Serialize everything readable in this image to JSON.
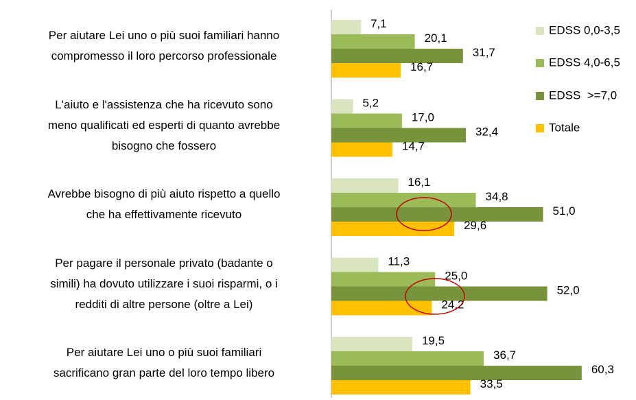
{
  "chart_data": {
    "type": "hbar",
    "categories": [
      "Per aiutare Lei uno o più suoi familiari hanno\ncompromesso il loro percorso professionale",
      "L'aiuto e l'assistenza che ha ricevuto sono\nmeno qualificati ed esperti di quanto avrebbe\nbisogno che fossero",
      "Avrebbe bisogno di più aiuto rispetto a quello\nche ha effettivamente ricevuto",
      "Per pagare il personale privato (badante o\nsimili) ha dovuto utilizzare i suoi risparmi, o i\nredditi di altre persone (oltre a Lei)",
      "Per aiutare Lei uno o più suoi familiari\nsacrificano gran parte del loro tempo libero"
    ],
    "series": [
      {
        "name": "EDSS 0,0-3,5",
        "color": "#d7e4bd",
        "values": [
          7.1,
          5.2,
          16.1,
          11.3,
          19.5
        ],
        "value_labels": [
          "7,1",
          "5,2",
          "16,1",
          "11,3",
          "19,5"
        ]
      },
      {
        "name": "EDSS 4,0-6,5",
        "color": "#9bbb59",
        "values": [
          20.1,
          17.0,
          34.8,
          25.0,
          36.7
        ],
        "value_labels": [
          "20,1",
          "17,0",
          "34,8",
          "25,0",
          "36,7"
        ]
      },
      {
        "name": "EDSS  >=7,0",
        "color": "#77933c",
        "values": [
          31.7,
          32.4,
          51.0,
          52.0,
          60.3
        ],
        "value_labels": [
          "31,7",
          "32,4",
          "51,0",
          "52,0",
          "60,3"
        ]
      },
      {
        "name": "Totale",
        "color": "#ffc000",
        "values": [
          16.7,
          14.7,
          29.6,
          24.2,
          33.5
        ],
        "value_labels": [
          "16,7",
          "14,7",
          "29,6",
          "24,2",
          "33,5"
        ]
      }
    ],
    "legend": "right"
  }
}
